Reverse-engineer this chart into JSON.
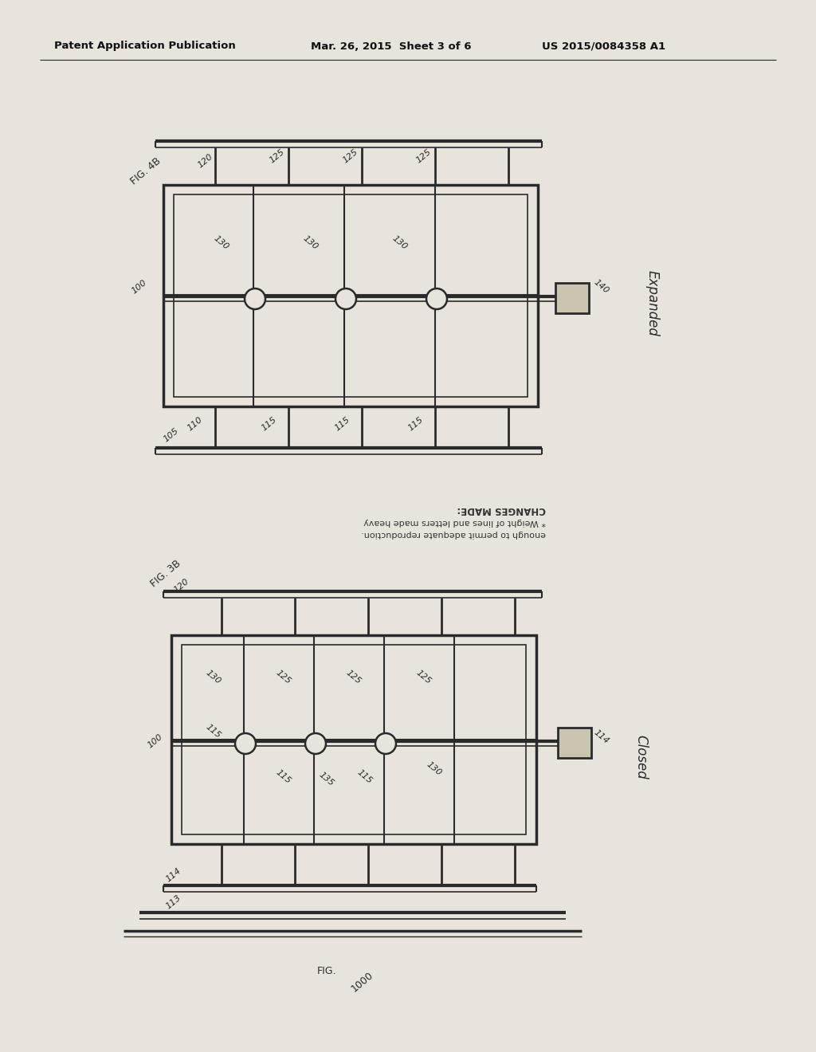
{
  "bg_color": "#e8e4db",
  "line_color": "#2a2a2a",
  "header_text": "Patent Application Publication",
  "header_date": "Mar. 26, 2015  Sheet 3 of 6",
  "header_patent": "US 2015/0084358 A1",
  "fig_label_top": "FIG. 4B",
  "fig_label_bottom": "FIG. 3B",
  "expanded_label": "Expanded",
  "closed_label": "Closed",
  "changes_made": "CHANGES MADE:",
  "changes_line1": "* Weight of lines and letters made heavy",
  "changes_line2": "enough to permit adequate reproduction.",
  "footer_fig": "FIG.",
  "footer_num": "1000"
}
